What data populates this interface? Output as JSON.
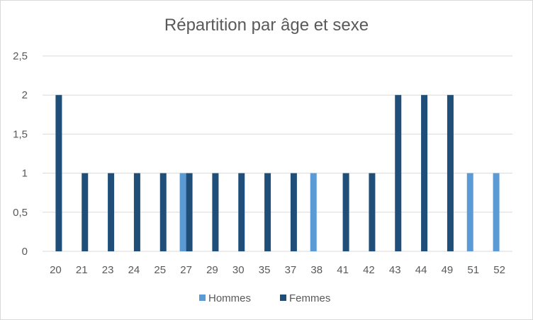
{
  "chart_data": {
    "type": "bar",
    "title": "Répartition par âge et sexe",
    "xlabel": "",
    "ylabel": "",
    "categories": [
      "20",
      "21",
      "23",
      "24",
      "25",
      "27",
      "29",
      "30",
      "35",
      "37",
      "38",
      "41",
      "42",
      "43",
      "44",
      "49",
      "51",
      "52"
    ],
    "series": [
      {
        "name": "Hommes",
        "color": "#5b9bd5",
        "values": [
          0,
          0,
          0,
          0,
          0,
          1,
          0,
          0,
          0,
          0,
          1,
          0,
          0,
          0,
          0,
          0,
          1,
          1
        ]
      },
      {
        "name": "Femmes",
        "color": "#1f4e79",
        "values": [
          2,
          1,
          1,
          1,
          1,
          1,
          1,
          1,
          1,
          1,
          0,
          1,
          1,
          2,
          2,
          2,
          0,
          0
        ]
      }
    ],
    "yticks": [
      "0",
      "0,5",
      "1",
      "1,5",
      "2",
      "2,5"
    ],
    "ylim": [
      0,
      2.5
    ],
    "grid": true,
    "legend": "bottom"
  }
}
